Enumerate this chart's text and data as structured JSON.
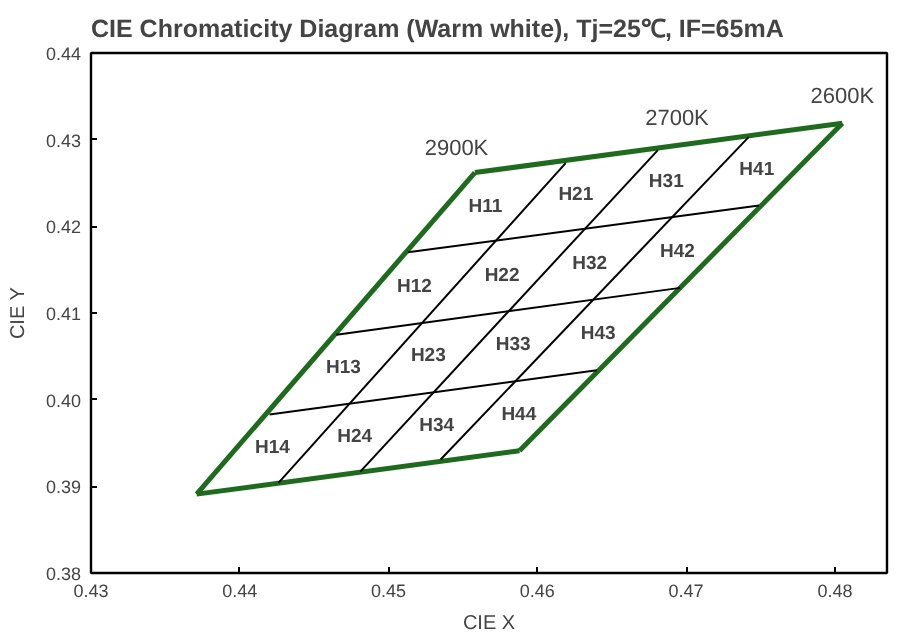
{
  "chart_data": {
    "type": "line",
    "title": "CIE Chromaticity Diagram (Warm white),  Tj=25℃, IF=65mA",
    "xlabel": "CIE X",
    "ylabel": "CIE Y",
    "xlim": [
      0.43,
      0.4835
    ],
    "ylim": [
      0.38,
      0.44
    ],
    "xticks": [
      0.43,
      0.44,
      0.45,
      0.46,
      0.47,
      0.48
    ],
    "yticks": [
      0.38,
      0.39,
      {
        "value": 0.4,
        "label": "0.40"
      },
      0.41,
      0.42,
      0.43,
      0.44
    ],
    "grid": false,
    "marker": "none",
    "line_style": "solid",
    "series": [
      {
        "color": "#1e6b1e",
        "x": [
          0.4371,
          0.4558
        ],
        "values": [
          0.3891,
          0.4262
        ]
      },
      {
        "color": "#1e6b1e",
        "x": [
          0.4558,
          0.4805
        ],
        "values": [
          0.4262,
          0.4319
        ]
      },
      {
        "color": "#1e6b1e",
        "x": [
          0.4588,
          0.4805
        ],
        "values": [
          0.3941,
          0.4319
        ]
      },
      {
        "color": "#1e6b1e",
        "x": [
          0.4371,
          0.4588
        ],
        "values": [
          0.3891,
          0.3941
        ]
      },
      {
        "color": "#000000",
        "x": [
          0.4426,
          0.4619
        ],
        "values": [
          0.3904,
          0.4273
        ]
      },
      {
        "color": "#000000",
        "x": [
          0.4481,
          0.4681
        ],
        "values": [
          0.3917,
          0.4288
        ]
      },
      {
        "color": "#000000",
        "x": [
          0.4535,
          0.4742
        ],
        "values": [
          0.3931,
          0.4303
        ]
      },
      {
        "color": "#000000",
        "x": [
          0.4513,
          0.4749
        ],
        "values": [
          0.417,
          0.4224
        ]
      },
      {
        "color": "#000000",
        "x": [
          0.4465,
          0.4696
        ],
        "values": [
          0.4075,
          0.4129
        ]
      },
      {
        "color": "#000000",
        "x": [
          0.442,
          0.464
        ],
        "values": [
          0.3983,
          0.4034
        ]
      }
    ],
    "annotations": [
      "2900K",
      "2700K",
      "2600K",
      "H11",
      "H21",
      "H31",
      "H41",
      "H12",
      "H22",
      "H32",
      "H42",
      "H13",
      "H23",
      "H33",
      "H43",
      "H14",
      "H24",
      "H34",
      "H44"
    ]
  }
}
